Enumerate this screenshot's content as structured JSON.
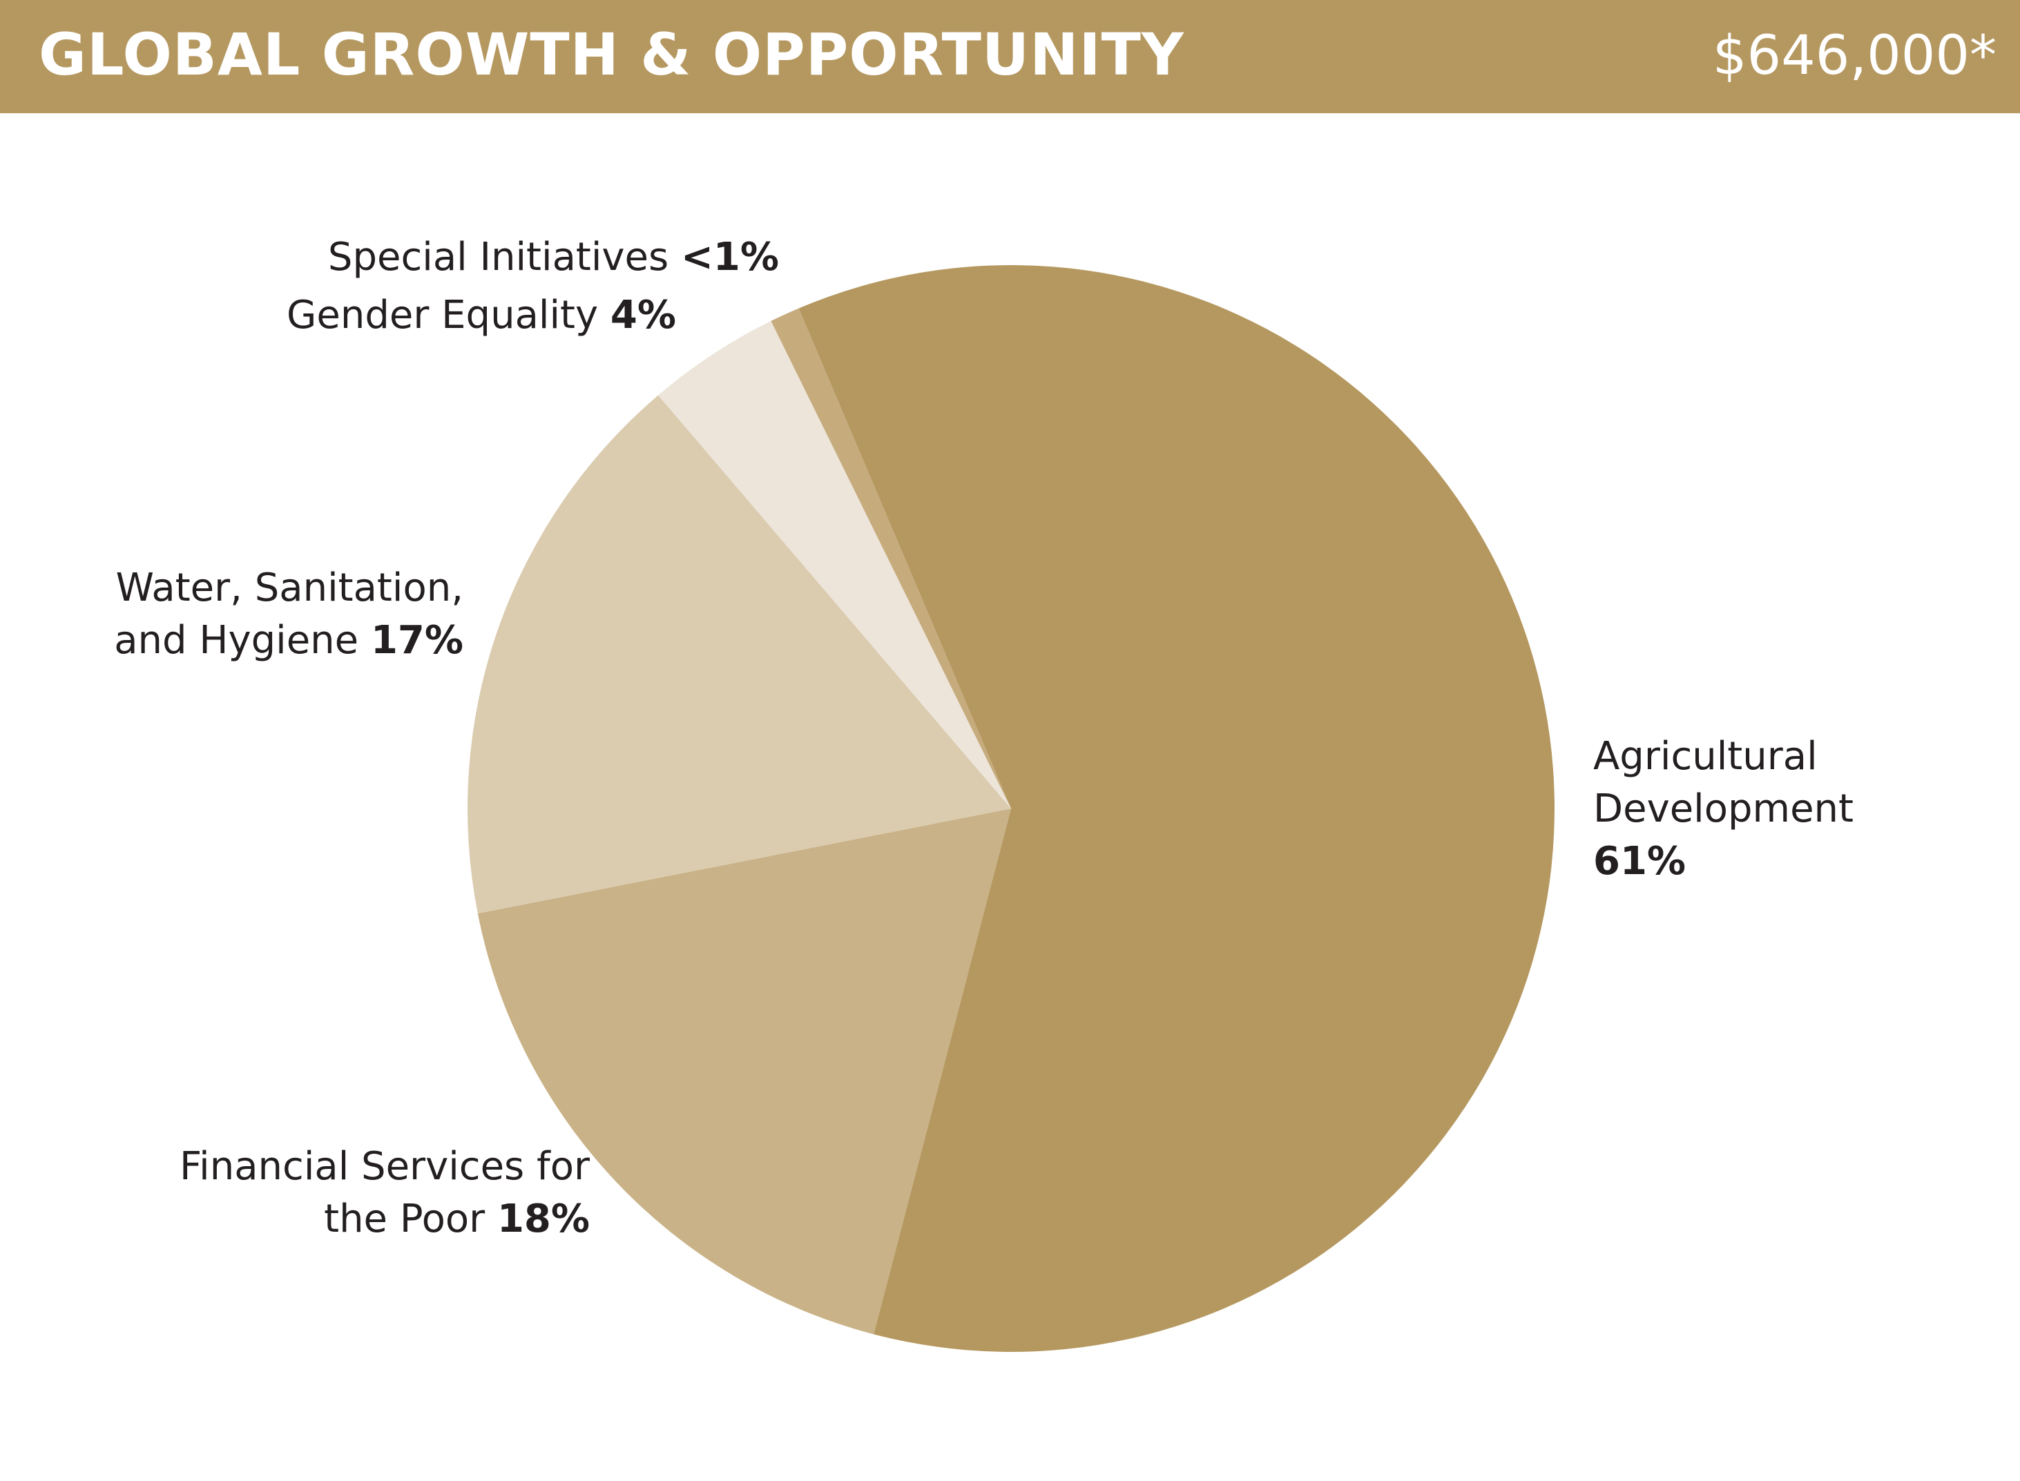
{
  "chart_data": {
    "type": "pie",
    "title": "GLOBAL GROWTH & OPPORTUNITY",
    "total_label": "$646,000*",
    "categories": [
      "Agricultural Development",
      "Financial Services for the Poor",
      "Water, Sanitation, and Hygiene",
      "Gender Equality",
      "Special Initiatives"
    ],
    "values": [
      61,
      18,
      17,
      4,
      0.9
    ],
    "value_labels": [
      "61%",
      "18%",
      "17%",
      "4%",
      "<1%"
    ],
    "colors": [
      "#b59860",
      "#c9b287",
      "#dbccb0",
      "#ede5da",
      "#c6ab7d"
    ]
  }
}
